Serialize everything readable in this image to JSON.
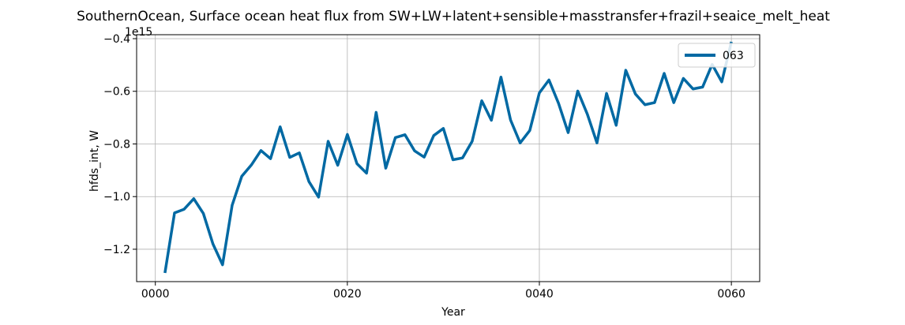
{
  "chart_data": {
    "type": "line",
    "title": "SouthernOcean, Surface ocean heat flux from SW+LW+latent+sensible+masstransfer+frazil+seaice_melt_heat",
    "xlabel": "Year",
    "ylabel": "hfds_int, W",
    "offset_label": "1e15",
    "xlim": [
      -1.95,
      62.95
    ],
    "ylim": [
      -1.323,
      -0.385
    ],
    "x_ticks": [
      0,
      20,
      40,
      60
    ],
    "x_tick_labels": [
      "0000",
      "0020",
      "0040",
      "0060"
    ],
    "y_ticks": [
      -1.2,
      -1.0,
      -0.8,
      -0.6,
      -0.4
    ],
    "y_tick_labels": [
      "−1.2",
      "−1.0",
      "−0.8",
      "−0.6",
      "−0.4"
    ],
    "grid": true,
    "legend_position": "top-right",
    "line_color": "#0069a3",
    "series": [
      {
        "name": "063",
        "x": [
          1,
          2,
          3,
          4,
          5,
          6,
          7,
          8,
          9,
          10,
          11,
          12,
          13,
          14,
          15,
          16,
          17,
          18,
          19,
          20,
          21,
          22,
          23,
          24,
          25,
          26,
          27,
          28,
          29,
          30,
          31,
          32,
          33,
          34,
          35,
          36,
          37,
          38,
          39,
          40,
          41,
          42,
          43,
          44,
          45,
          46,
          47,
          48,
          49,
          50,
          51,
          52,
          53,
          54,
          55,
          56,
          57,
          58,
          59,
          60
        ],
        "values": [
          -1.29,
          -1.062,
          -1.048,
          -1.008,
          -1.064,
          -1.18,
          -1.259,
          -1.033,
          -0.923,
          -0.88,
          -0.825,
          -0.856,
          -0.735,
          -0.851,
          -0.834,
          -0.943,
          -1.002,
          -0.79,
          -0.881,
          -0.764,
          -0.875,
          -0.911,
          -0.68,
          -0.892,
          -0.776,
          -0.765,
          -0.826,
          -0.85,
          -0.768,
          -0.741,
          -0.86,
          -0.853,
          -0.79,
          -0.636,
          -0.71,
          -0.546,
          -0.709,
          -0.796,
          -0.749,
          -0.606,
          -0.557,
          -0.646,
          -0.757,
          -0.599,
          -0.687,
          -0.796,
          -0.608,
          -0.729,
          -0.52,
          -0.61,
          -0.651,
          -0.643,
          -0.532,
          -0.643,
          -0.551,
          -0.591,
          -0.584,
          -0.498,
          -0.564,
          -0.412
        ]
      }
    ]
  }
}
